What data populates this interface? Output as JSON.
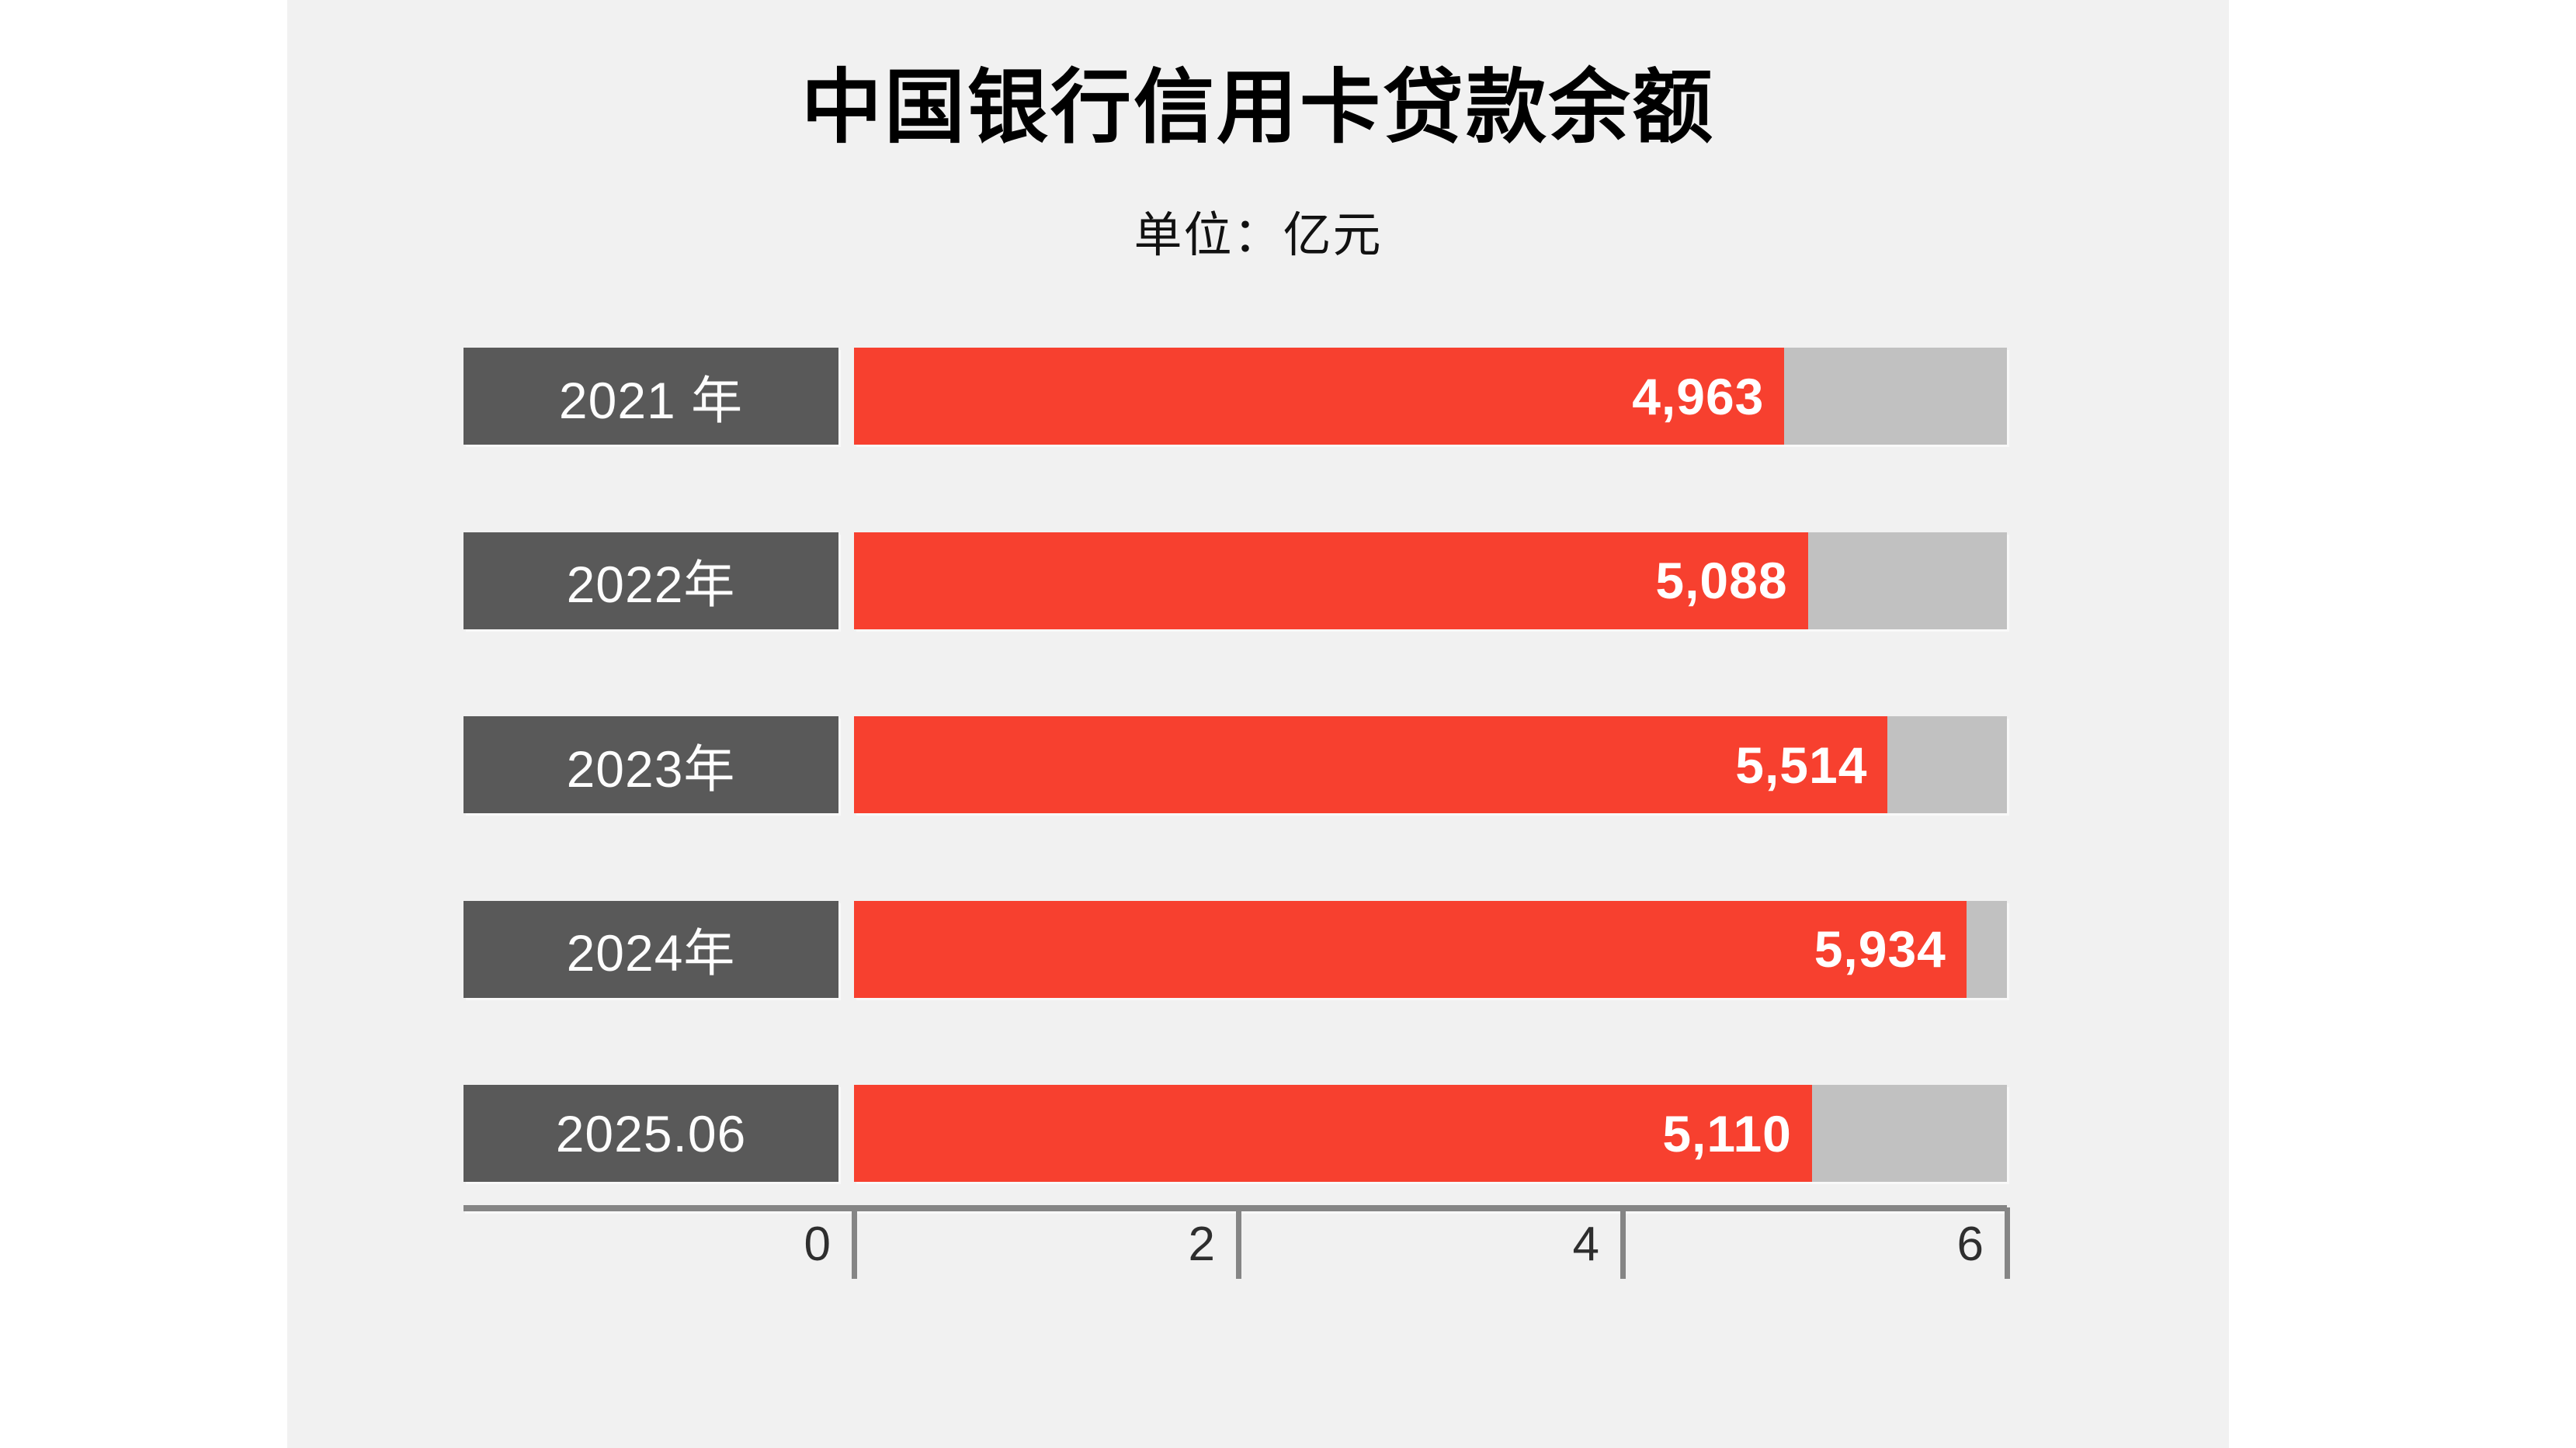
{
  "header": {
    "title": "中国银行信用卡贷款余额",
    "subtitle": "单位：亿元"
  },
  "colors": {
    "page_background": "#ffffff",
    "panel_background": "#f1f1f1",
    "bar_red": "#f7402f",
    "label_box_gray": "#595959",
    "track_gray": "#c1c1c1",
    "axis_gray": "#858585",
    "axis_text": "#2e2e2e",
    "value_text": "#ffffff",
    "category_text": "#fdfdfd",
    "title_text": "#000000"
  },
  "chart_data": {
    "type": "bar",
    "orientation": "horizontal",
    "title": "中国银行信用卡贷款余额",
    "unit": "亿元",
    "categories": [
      "2021 年",
      "2022年",
      "2023年",
      "2024年",
      "2025.06"
    ],
    "values": [
      4963,
      5088,
      5514,
      5934,
      5110
    ],
    "value_labels": [
      "4,963",
      "5,088",
      "5,514",
      "5,934",
      "5,110"
    ],
    "xlim": [
      0,
      6000
    ],
    "x_ticks": [
      0,
      2,
      4,
      6
    ],
    "x_tick_unit": 1000,
    "x_tick_labels": [
      "0",
      "2",
      "4",
      "6"
    ],
    "grid": false,
    "legend": false,
    "value_labels_position": "inside-end",
    "category_labels_style": "dark-box"
  },
  "render": {
    "bar_axis_max": 6150,
    "tick_axis_max": 6000
  }
}
